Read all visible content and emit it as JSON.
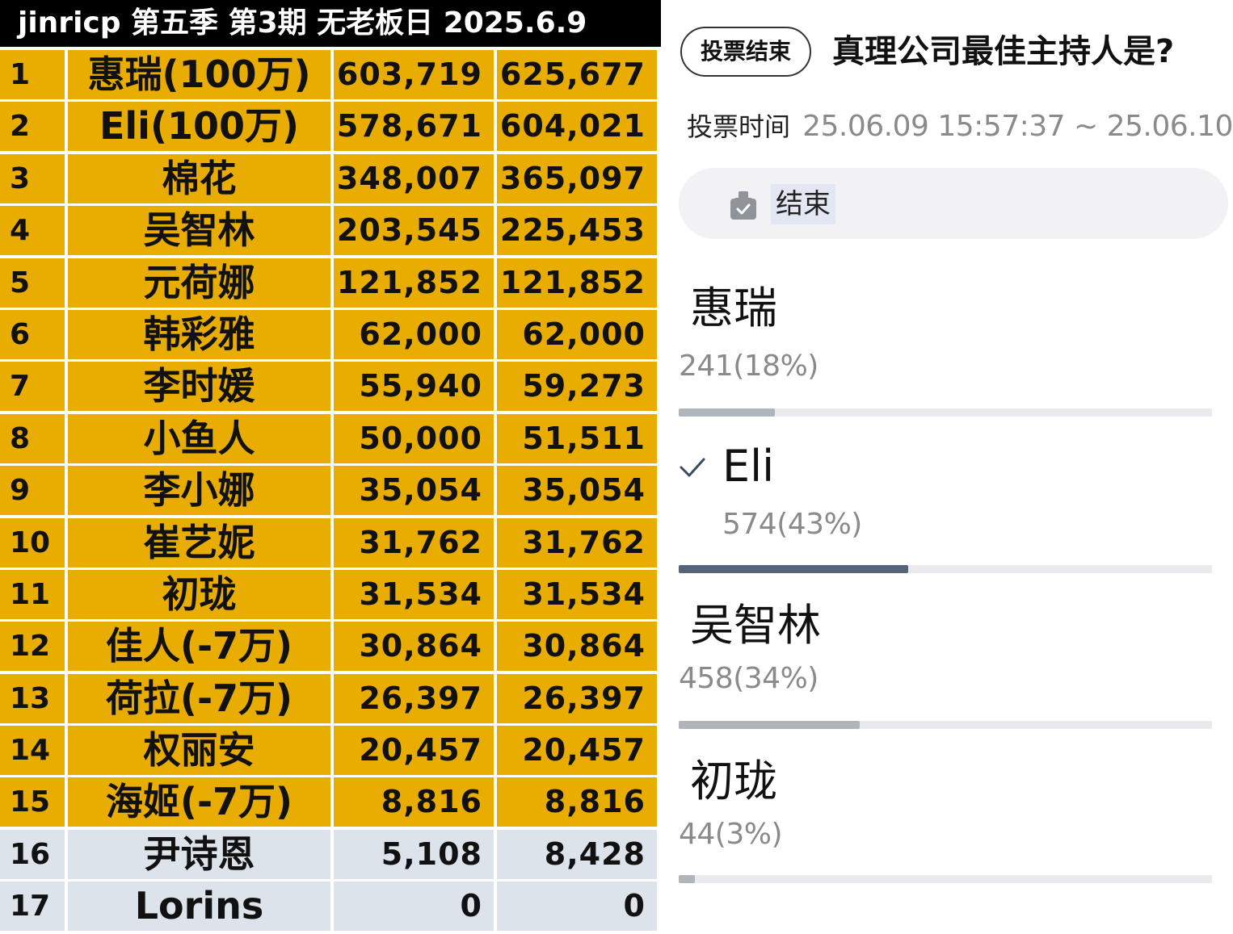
{
  "table": {
    "header": "jinricp 第五季 第3期 无老板日 2025.6.9",
    "rows": [
      {
        "rank": "1",
        "name": "惠瑞(100万)",
        "v1": "603,719",
        "v2": "625,677",
        "tier": "gold"
      },
      {
        "rank": "2",
        "name": "Eli(100万)",
        "v1": "578,671",
        "v2": "604,021",
        "tier": "gold"
      },
      {
        "rank": "3",
        "name": "棉花",
        "v1": "348,007",
        "v2": "365,097",
        "tier": "gold"
      },
      {
        "rank": "4",
        "name": "吴智林",
        "v1": "203,545",
        "v2": "225,453",
        "tier": "gold"
      },
      {
        "rank": "5",
        "name": "元荷娜",
        "v1": "121,852",
        "v2": "121,852",
        "tier": "gold"
      },
      {
        "rank": "6",
        "name": "韩彩雅",
        "v1": "62,000",
        "v2": "62,000",
        "tier": "gold"
      },
      {
        "rank": "7",
        "name": "李时媛",
        "v1": "55,940",
        "v2": "59,273",
        "tier": "gold"
      },
      {
        "rank": "8",
        "name": "小鱼人",
        "v1": "50,000",
        "v2": "51,511",
        "tier": "gold"
      },
      {
        "rank": "9",
        "name": "李小娜",
        "v1": "35,054",
        "v2": "35,054",
        "tier": "gold"
      },
      {
        "rank": "10",
        "name": "崔艺妮",
        "v1": "31,762",
        "v2": "31,762",
        "tier": "gold"
      },
      {
        "rank": "11",
        "name": "初珑",
        "v1": "31,534",
        "v2": "31,534",
        "tier": "gold"
      },
      {
        "rank": "12",
        "name": "佳人(-7万)",
        "v1": "30,864",
        "v2": "30,864",
        "tier": "gold"
      },
      {
        "rank": "13",
        "name": "荷拉(-7万)",
        "v1": "26,397",
        "v2": "26,397",
        "tier": "gold"
      },
      {
        "rank": "14",
        "name": "权丽安",
        "v1": "20,457",
        "v2": "20,457",
        "tier": "gold"
      },
      {
        "rank": "15",
        "name": "海姬(-7万)",
        "v1": "8,816",
        "v2": "8,816",
        "tier": "gold"
      },
      {
        "rank": "16",
        "name": "尹诗恩",
        "v1": "5,108",
        "v2": "8,428",
        "tier": "grey"
      },
      {
        "rank": "17",
        "name": "Lorins",
        "v1": "0",
        "v2": "0",
        "tier": "grey"
      }
    ],
    "colors": {
      "gold": "#e9ad02",
      "grey": "#dde3ea",
      "header_bg": "#000000"
    }
  },
  "poll": {
    "status_label": "投票结束",
    "title": "真理公司最佳主持人是?",
    "vote_time_label": "投票时间",
    "vote_time_range": "25.06.09 15:57:37 ~ 25.06.10",
    "ended_icon": "ballot-box-icon",
    "ended_label": "结束",
    "options": [
      {
        "name": "惠瑞",
        "count": "241(18%)",
        "percent": 18,
        "selected": false
      },
      {
        "name": "Eli",
        "count": "574(43%)",
        "percent": 43,
        "selected": true
      },
      {
        "name": "吴智林",
        "count": "458(34%)",
        "percent": 34,
        "selected": false
      },
      {
        "name": "初珑",
        "count": "44(3%)",
        "percent": 3,
        "selected": false
      }
    ],
    "colors": {
      "bar_selected": "#556479",
      "bar_default": "#b0b4bb",
      "track": "#e9eaee"
    }
  }
}
